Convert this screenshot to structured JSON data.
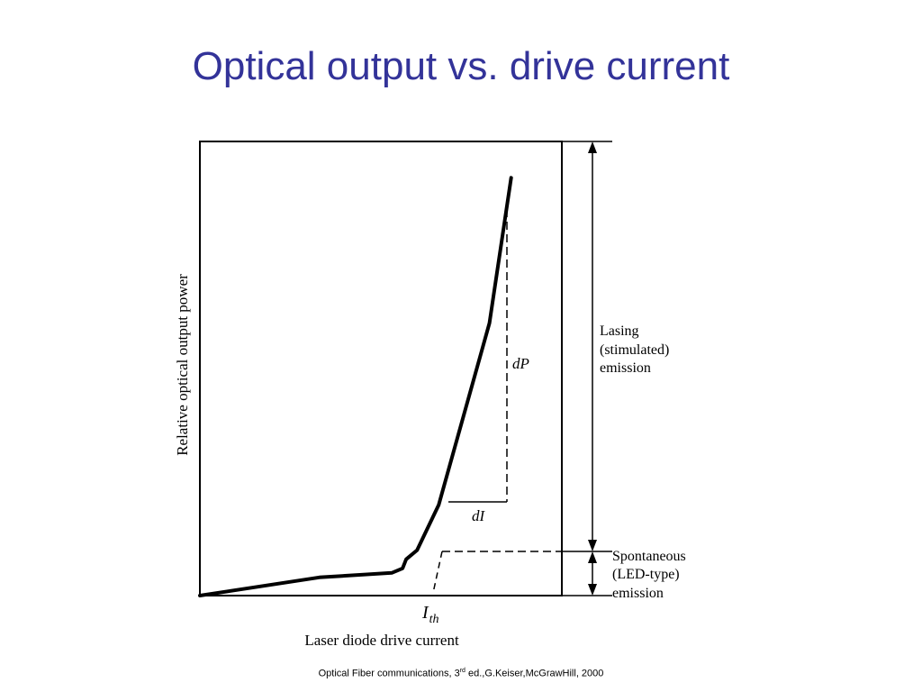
{
  "slide": {
    "title": "Optical output vs. drive current",
    "citation_prefix": "Optical Fiber communications, 3",
    "citation_sup": "rd",
    "citation_suffix": " ed.,G.Keiser,McGrawHill, 2000"
  },
  "colors": {
    "title": "#333399",
    "line": "#000000"
  },
  "chart_data": {
    "type": "line",
    "title": "",
    "xlabel": "Laser diode drive current",
    "ylabel": "Relative optical output power",
    "xlim": [
      0,
      100
    ],
    "ylim": [
      0,
      100
    ],
    "grid": false,
    "series": [
      {
        "x": [
          0,
          33,
          53,
          56,
          57,
          60,
          66,
          80,
          86
        ],
        "y": [
          0,
          4,
          5,
          6,
          8,
          10,
          20,
          60,
          92
        ]
      }
    ],
    "annotations": {
      "threshold_label": "I",
      "threshold_subscript": "th",
      "dP_label": "dP",
      "dI_label": "dI",
      "stimulated_region": [
        "Lasing",
        "(stimulated)",
        "emission"
      ],
      "spontaneous_region": [
        "Spontaneous",
        "(LED-type)",
        "emission"
      ]
    }
  }
}
